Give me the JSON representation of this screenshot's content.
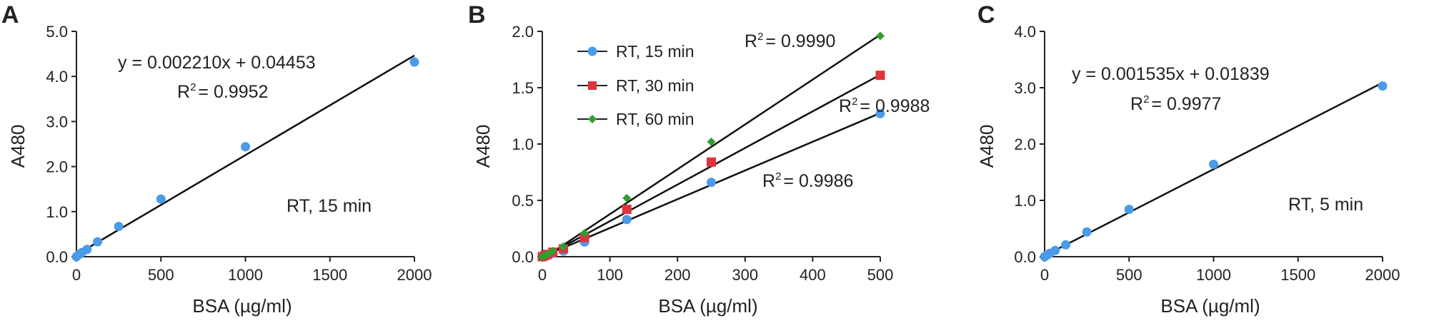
{
  "chart_data": [
    {
      "panel": "A",
      "type": "scatter",
      "xlabel": "BSA (µg/ml)",
      "ylabel": "A480",
      "xlim": [
        0,
        2000
      ],
      "ylim": [
        0,
        5
      ],
      "xticks": [
        "0",
        "500",
        "1000",
        "1500",
        "2000"
      ],
      "yticks": [
        "0.0",
        "1.0",
        "2.0",
        "3.0",
        "4.0",
        "5.0"
      ],
      "series": [
        {
          "color": "#4a9be8",
          "marker": "circle",
          "x": [
            0,
            15.6,
            31.25,
            62.5,
            125,
            250,
            500,
            1000,
            2000
          ],
          "y": [
            0.0,
            0.05,
            0.09,
            0.16,
            0.33,
            0.67,
            1.28,
            2.44,
            4.32
          ],
          "fit": {
            "slope": 0.00221,
            "intercept": 0.04453,
            "x_range": [
              0,
              2000
            ]
          }
        }
      ],
      "annotations": {
        "equation": "y = 0.002210x + 0.04453",
        "r2_prefix": "R",
        "r2_exp": "2",
        "r2_value": "= 0.9952",
        "condition": "RT, 15 min"
      }
    },
    {
      "panel": "B",
      "type": "scatter",
      "xlabel": "BSA (µg/ml)",
      "ylabel": "A480",
      "xlim": [
        0,
        500
      ],
      "ylim": [
        0,
        2
      ],
      "xticks": [
        "0",
        "100",
        "200",
        "300",
        "400",
        "500"
      ],
      "yticks": [
        "0.0",
        "0.5",
        "1.0",
        "1.5",
        "2.0"
      ],
      "series": [
        {
          "name": "RT, 15 min",
          "color": "#4a9be8",
          "marker": "circle",
          "x": [
            0,
            3.9,
            7.8,
            15.6,
            31.25,
            62.5,
            125,
            250,
            500
          ],
          "y": [
            0.0,
            0.01,
            0.02,
            0.03,
            0.05,
            0.13,
            0.33,
            0.66,
            1.27
          ],
          "fit": {
            "slope": 0.00255,
            "intercept": 0.0,
            "x_range": [
              0,
              500
            ]
          },
          "r2": "= 0.9986"
        },
        {
          "name": "RT, 30 min",
          "color": "#e0333c",
          "marker": "square",
          "x": [
            0,
            3.9,
            7.8,
            15.6,
            31.25,
            62.5,
            125,
            250,
            500
          ],
          "y": [
            0.0,
            0.01,
            0.02,
            0.04,
            0.07,
            0.17,
            0.42,
            0.84,
            1.61
          ],
          "fit": {
            "slope": 0.00325,
            "intercept": -0.01,
            "x_range": [
              0,
              500
            ]
          },
          "r2": "= 0.9988"
        },
        {
          "name": "RT, 60 min",
          "color": "#2ea02e",
          "marker": "diamond",
          "x": [
            0,
            3.9,
            7.8,
            15.6,
            31.25,
            62.5,
            125,
            250,
            500
          ],
          "y": [
            0.0,
            0.01,
            0.02,
            0.05,
            0.09,
            0.21,
            0.52,
            1.02,
            1.96
          ],
          "fit": {
            "slope": 0.00398,
            "intercept": -0.02,
            "x_range": [
              0,
              500
            ]
          },
          "r2": "= 0.9990"
        }
      ],
      "annotations": {
        "r2_prefix": "R",
        "r2_exp": "2"
      },
      "legend": {
        "position": "top-left"
      }
    },
    {
      "panel": "C",
      "type": "scatter",
      "xlabel": "BSA (µg/ml)",
      "ylabel": "A480",
      "xlim": [
        0,
        2000
      ],
      "ylim": [
        0,
        4
      ],
      "xticks": [
        "0",
        "500",
        "1000",
        "1500",
        "2000"
      ],
      "yticks": [
        "0.0",
        "1.0",
        "2.0",
        "3.0",
        "4.0"
      ],
      "series": [
        {
          "color": "#4a9be8",
          "marker": "circle",
          "x": [
            0,
            15.6,
            31.25,
            62.5,
            125,
            250,
            500,
            1000,
            2000
          ],
          "y": [
            0.0,
            0.03,
            0.06,
            0.11,
            0.21,
            0.44,
            0.84,
            1.64,
            3.03
          ],
          "fit": {
            "slope": 0.001535,
            "intercept": 0.01839,
            "x_range": [
              0,
              2000
            ]
          }
        }
      ],
      "annotations": {
        "equation": "y = 0.001535x + 0.01839",
        "r2_prefix": "R",
        "r2_exp": "2",
        "r2_value": "= 0.9977",
        "condition": "RT, 5 min"
      }
    }
  ]
}
